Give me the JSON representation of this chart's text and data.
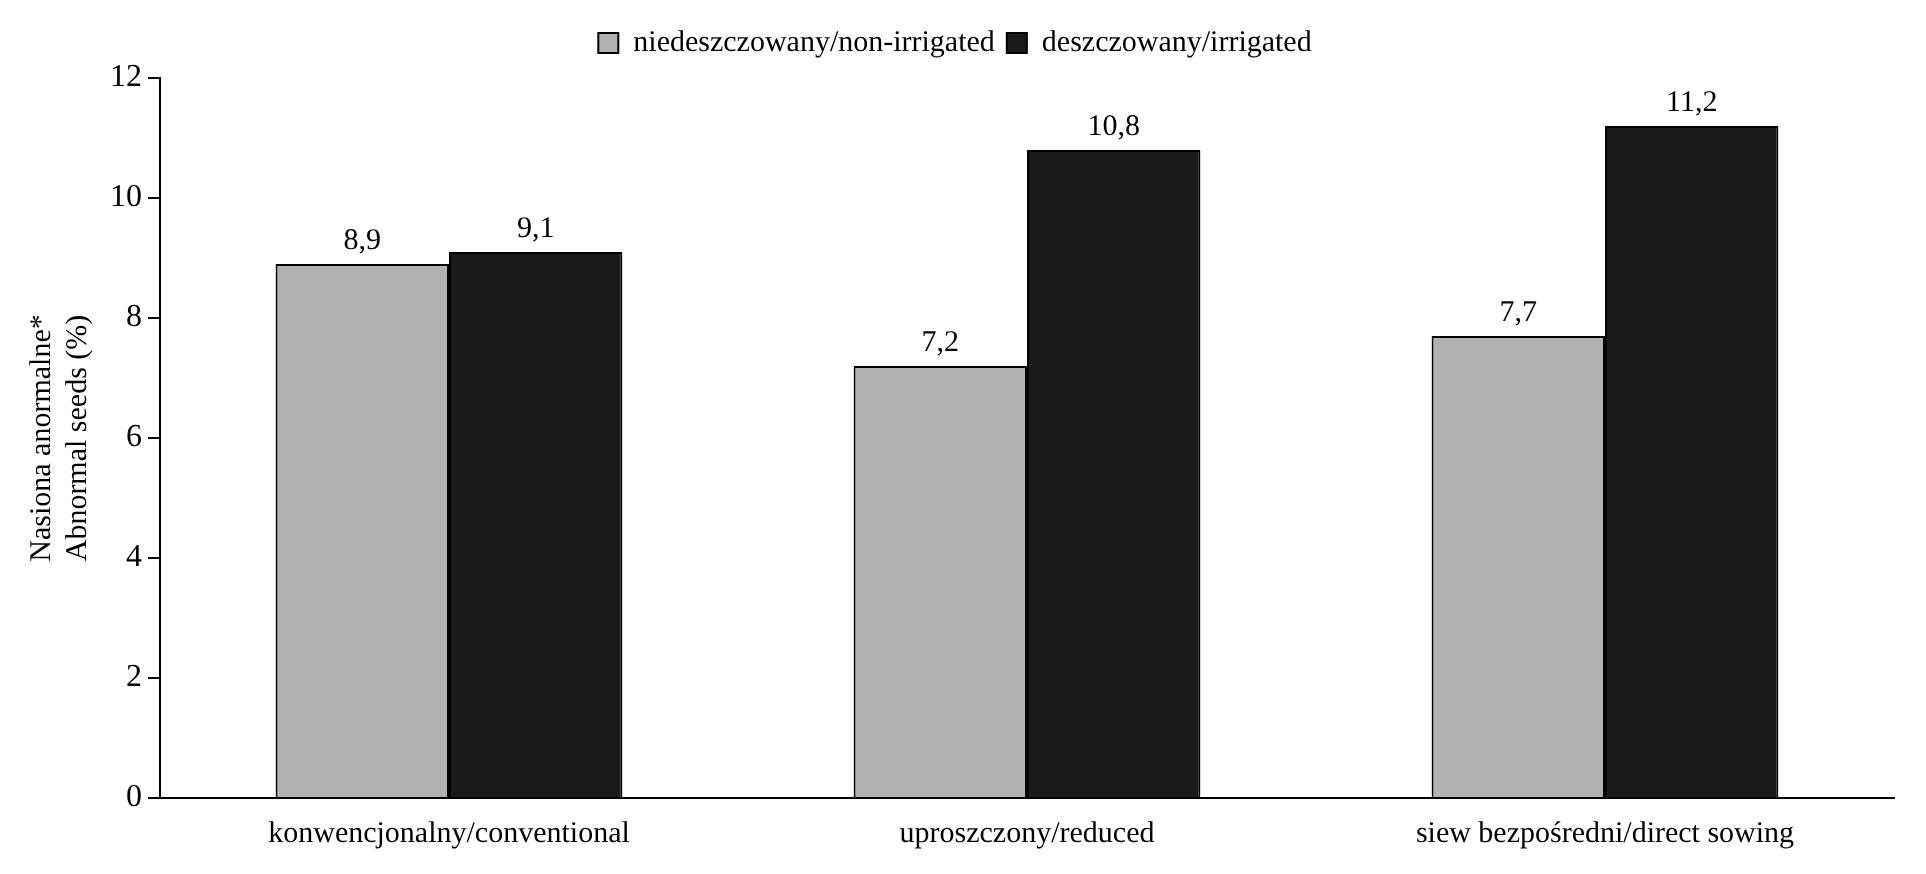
{
  "chart_data": {
    "type": "bar",
    "ylabel": "Nasiona anormalne*\nAbnormal seeds (%)",
    "categories": [
      "konwencjonalny/conventional",
      "uproszczony/reduced",
      "siew bezpośredni/direct sowing"
    ],
    "series": [
      {
        "name": "niedeszczowany/non-irrigated",
        "color": "#b2b2b2",
        "values": [
          8.9,
          7.2,
          7.7
        ],
        "value_labels": [
          "8,9",
          "7,2",
          "7,7"
        ]
      },
      {
        "name": "deszczowany/irrigated",
        "color": "#1a1a1a",
        "values": [
          9.1,
          10.8,
          11.2
        ],
        "value_labels": [
          "9,1",
          "10,8",
          "11,2"
        ]
      }
    ],
    "ylim": [
      0,
      12
    ],
    "yticks": [
      0,
      2,
      4,
      6,
      8,
      10,
      12
    ],
    "grid": false,
    "legend": "top"
  }
}
